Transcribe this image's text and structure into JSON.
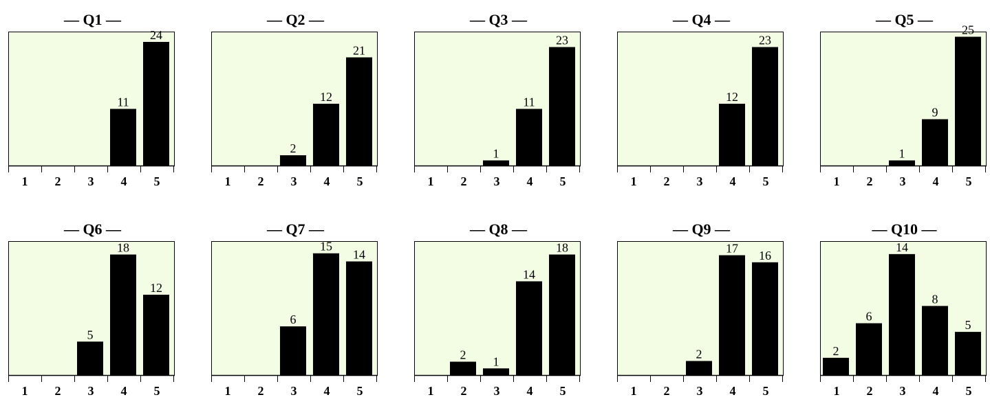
{
  "chart_data": [
    {
      "type": "bar",
      "title": "— Q1 —",
      "categories": [
        "1",
        "2",
        "3",
        "4",
        "5"
      ],
      "values": [
        0,
        0,
        0,
        11,
        24
      ],
      "ylim": [
        0,
        26
      ]
    },
    {
      "type": "bar",
      "title": "— Q2 —",
      "categories": [
        "1",
        "2",
        "3",
        "4",
        "5"
      ],
      "values": [
        0,
        0,
        2,
        12,
        21
      ],
      "ylim": [
        0,
        26
      ]
    },
    {
      "type": "bar",
      "title": "— Q3 —",
      "categories": [
        "1",
        "2",
        "3",
        "4",
        "5"
      ],
      "values": [
        0,
        0,
        1,
        11,
        23
      ],
      "ylim": [
        0,
        26
      ]
    },
    {
      "type": "bar",
      "title": "— Q4 —",
      "categories": [
        "1",
        "2",
        "3",
        "4",
        "5"
      ],
      "values": [
        0,
        0,
        0,
        12,
        23
      ],
      "ylim": [
        0,
        26
      ]
    },
    {
      "type": "bar",
      "title": "— Q5 —",
      "categories": [
        "1",
        "2",
        "3",
        "4",
        "5"
      ],
      "values": [
        0,
        0,
        1,
        9,
        25
      ],
      "ylim": [
        0,
        26
      ]
    },
    {
      "type": "bar",
      "title": "— Q6 —",
      "categories": [
        "1",
        "2",
        "3",
        "4",
        "5"
      ],
      "values": [
        0,
        0,
        5,
        18,
        12
      ],
      "ylim": [
        0,
        20
      ]
    },
    {
      "type": "bar",
      "title": "— Q7 —",
      "categories": [
        "1",
        "2",
        "3",
        "4",
        "5"
      ],
      "values": [
        0,
        0,
        6,
        15,
        14
      ],
      "ylim": [
        0,
        16.5
      ]
    },
    {
      "type": "bar",
      "title": "— Q8 —",
      "categories": [
        "1",
        "2",
        "3",
        "4",
        "5"
      ],
      "values": [
        0,
        2,
        1,
        14,
        18
      ],
      "ylim": [
        0,
        20
      ]
    },
    {
      "type": "bar",
      "title": "— Q9 —",
      "categories": [
        "1",
        "2",
        "3",
        "4",
        "5"
      ],
      "values": [
        0,
        0,
        2,
        17,
        16
      ],
      "ylim": [
        0,
        19
      ]
    },
    {
      "type": "bar",
      "title": "— Q10 —",
      "categories": [
        "1",
        "2",
        "3",
        "4",
        "5"
      ],
      "values": [
        2,
        6,
        14,
        8,
        5
      ],
      "ylim": [
        0,
        15.5
      ]
    }
  ],
  "colors": {
    "plot_background": "#f2fde4",
    "bar_fill": "#000000",
    "axis": "#000000",
    "border": "#000000"
  }
}
